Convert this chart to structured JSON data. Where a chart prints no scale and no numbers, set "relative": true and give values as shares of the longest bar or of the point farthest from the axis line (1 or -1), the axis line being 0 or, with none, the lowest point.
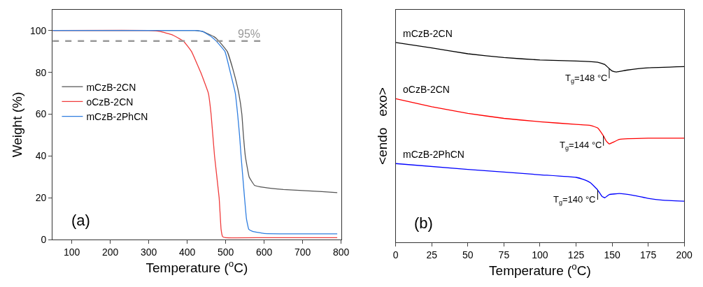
{
  "chart_data": [
    {
      "type": "line",
      "xlabel": "Temperature ($^{o}$C)",
      "ylabel": "Weight (%)",
      "xlim": [
        50,
        800
      ],
      "xticks": [
        100,
        200,
        300,
        400,
        500,
        600,
        700,
        800
      ],
      "ylim": [
        0,
        110
      ],
      "yticks": [
        0,
        20,
        40,
        60,
        80,
        100
      ],
      "legend": "left",
      "line_style": "solid",
      "marker": "none",
      "annotations": [
        "(a)",
        {
          "text": "95%",
          "x": 560,
          "y": 95
        }
      ],
      "series": [
        {
          "name": "mCzB-2CN",
          "color": "#555555",
          "x": [
            50,
            200,
            420,
            440,
            470,
            482,
            504,
            521,
            534,
            542,
            546,
            551,
            561,
            575,
            600,
            650,
            700,
            750,
            790
          ],
          "values": [
            100,
            100,
            100,
            99.5,
            97,
            95,
            90,
            80,
            70,
            60,
            50,
            40,
            30,
            26,
            25,
            24,
            23.5,
            23,
            22.5
          ]
        },
        {
          "name": "oCzB-2CN",
          "color": "#f03c3c",
          "x": [
            50,
            300,
            330,
            360,
            390,
            411,
            435,
            455,
            462,
            471,
            483,
            488,
            492,
            500,
            600,
            790
          ],
          "values": [
            100,
            100,
            99.5,
            98,
            95,
            90,
            80,
            70,
            60,
            40,
            20,
            5,
            1.5,
            1,
            1,
            1
          ]
        },
        {
          "name": "mCzB-2PhCN",
          "color": "#2f7ee0",
          "x": [
            50,
            200,
            420,
            440,
            463,
            475,
            498,
            512,
            525,
            531,
            536,
            540,
            549,
            554,
            560,
            570,
            600,
            700,
            790
          ],
          "values": [
            100,
            100,
            100,
            99.5,
            97,
            95,
            90,
            80,
            70,
            60,
            50,
            40,
            20,
            10,
            5,
            4,
            3,
            2.8,
            2.8
          ]
        },
        {
          "color": "#999999",
          "line_style": "dashed",
          "x": [
            50,
            590
          ],
          "values": [
            95,
            95
          ]
        }
      ]
    },
    {
      "type": "line",
      "xlabel": "Temperature ($^{o}$C)",
      "ylabel": "<endo   exo>",
      "relative": true,
      "xlim": [
        0,
        200
      ],
      "xticks": [
        0,
        25,
        50,
        75,
        100,
        125,
        150,
        175,
        200
      ],
      "legend": false,
      "line_style": "solid",
      "marker": "none",
      "annotations": [
        "(b)",
        {
          "text": "T$_{g}$=148 °C",
          "x": 148,
          "y": 0.87
        },
        {
          "text": "T$_{g}$=144 °C",
          "x": 144,
          "y": 0.533
        },
        {
          "text": "T$_{g}$=140 °C",
          "x": 140,
          "y": 0.263
        }
      ],
      "series": [
        {
          "name": "mCzB-2CN",
          "color": "#000000",
          "x": [
            0,
            25,
            50,
            75,
            100,
            125,
            140,
            145,
            148,
            150,
            153,
            160,
            175,
            200
          ],
          "values": [
            1.0,
            0.973,
            0.944,
            0.925,
            0.913,
            0.908,
            0.902,
            0.89,
            0.87,
            0.858,
            0.853,
            0.862,
            0.874,
            0.88
          ]
        },
        {
          "name": "oCzB-2CN",
          "color": "#ff0000",
          "x": [
            0,
            25,
            50,
            75,
            100,
            125,
            135,
            140,
            144,
            146,
            148,
            150,
            155,
            175,
            200
          ],
          "values": [
            0.719,
            0.679,
            0.646,
            0.621,
            0.604,
            0.591,
            0.586,
            0.573,
            0.533,
            0.507,
            0.493,
            0.499,
            0.516,
            0.522,
            0.522
          ]
        },
        {
          "name": "mCzB-2PhCN",
          "color": "#0000ff",
          "x": [
            0,
            50,
            100,
            125,
            130,
            135,
            140,
            143,
            145,
            148,
            155,
            165,
            175,
            185,
            200
          ],
          "values": [
            0.395,
            0.366,
            0.339,
            0.326,
            0.316,
            0.299,
            0.263,
            0.231,
            0.224,
            0.24,
            0.245,
            0.236,
            0.221,
            0.212,
            0.207
          ]
        }
      ]
    }
  ]
}
